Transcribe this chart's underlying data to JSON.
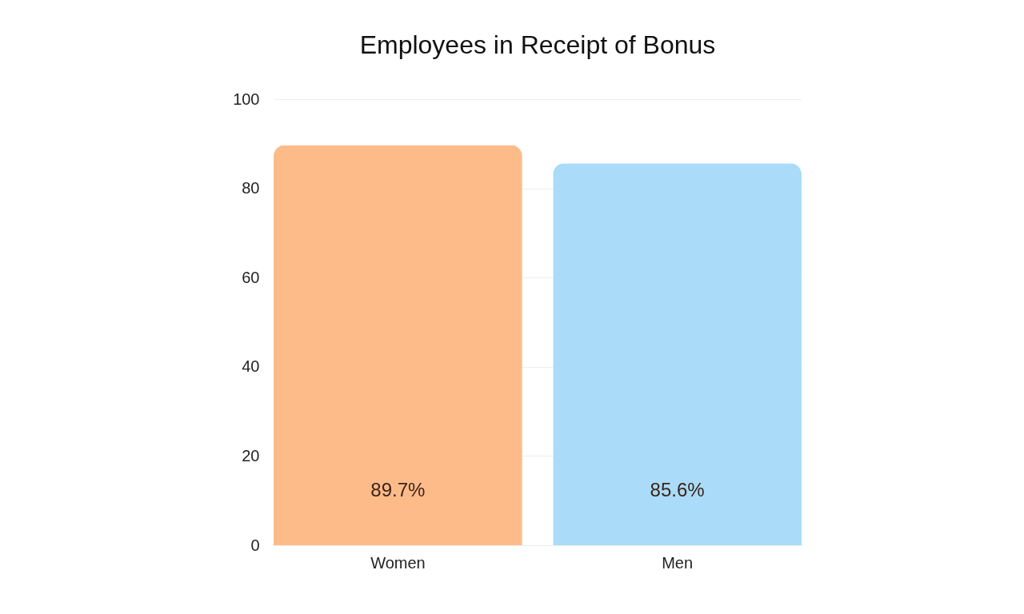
{
  "chart_data": {
    "type": "bar",
    "title": "Employees in Receipt of Bonus",
    "categories": [
      "Women",
      "Men"
    ],
    "values": [
      89.7,
      85.6
    ],
    "colors": [
      "#fdbb8a",
      "#aadcfa"
    ],
    "value_labels": [
      "89.7%",
      "85.6%"
    ],
    "ylim": [
      0,
      100
    ],
    "yticks": [
      0,
      20,
      40,
      60,
      80,
      100
    ],
    "grid": "y"
  }
}
